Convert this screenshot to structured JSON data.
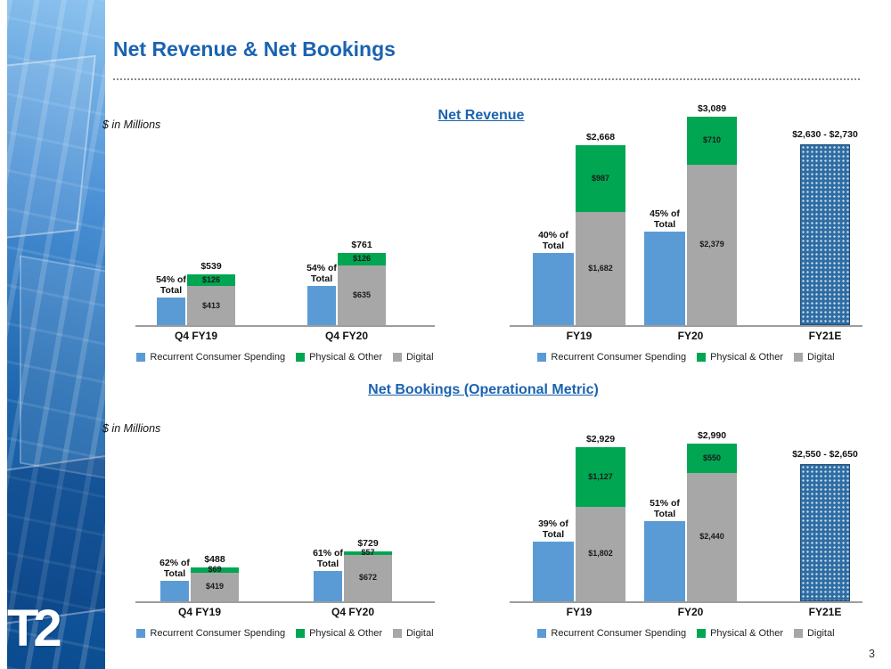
{
  "slide": {
    "title": "Net Revenue & Net Bookings",
    "page_number": "3",
    "logo_text": "T2",
    "units_label": "$ in Millions",
    "section_headings": {
      "revenue": "Net Revenue",
      "bookings": "Net Bookings (Operational Metric)"
    }
  },
  "colors": {
    "accent_blue": "#1b63b0",
    "bar_blue": "#5b9bd5",
    "bar_green": "#00a651",
    "bar_gray": "#a7a7a7",
    "estimate_bar_blue": "#2e6da4",
    "label_text": "#1a1a1a"
  },
  "chart_data": [
    {
      "id": "net_revenue_quarterly",
      "type": "bar",
      "title": "Net Revenue",
      "units": "$ in Millions",
      "ylim": [
        0,
        800
      ],
      "grid": false,
      "legend_position": "bottom",
      "legend": [
        "Recurrent Consumer Spending",
        "Physical & Other",
        "Digital"
      ],
      "categories": [
        "Q4 FY19",
        "Q4 FY20"
      ],
      "groups": [
        {
          "category": "Q4 FY19",
          "recurrent_pct": 54,
          "pct_label": "54% of Total",
          "total": 539,
          "total_label": "$539",
          "segments": {
            "digital": 413,
            "physical_other": 126
          },
          "segment_labels": {
            "digital": "$413",
            "physical_other": "$126"
          }
        },
        {
          "category": "Q4 FY20",
          "recurrent_pct": 54,
          "pct_label": "54% of Total",
          "total": 761,
          "total_label": "$761",
          "segments": {
            "digital": 635,
            "physical_other": 126
          },
          "segment_labels": {
            "digital": "$635",
            "physical_other": "$126"
          }
        }
      ]
    },
    {
      "id": "net_revenue_annual",
      "type": "bar",
      "title": "Net Revenue",
      "units": "$ in Millions",
      "ylim": [
        0,
        3300
      ],
      "grid": false,
      "legend_position": "bottom",
      "legend": [
        "Recurrent Consumer Spending",
        "Physical & Other",
        "Digital"
      ],
      "categories": [
        "FY19",
        "FY20",
        "FY21E"
      ],
      "groups": [
        {
          "category": "FY19",
          "recurrent_pct": 40,
          "pct_label": "40% of Total",
          "total": 2668,
          "total_label": "$2,668",
          "segments": {
            "digital": 1682,
            "physical_other": 987
          },
          "segment_labels": {
            "digital": "$1,682",
            "physical_other": "$987"
          }
        },
        {
          "category": "FY20",
          "recurrent_pct": 45,
          "pct_label": "45% of Total",
          "total": 3089,
          "total_label": "$3,089",
          "segments": {
            "digital": 2379,
            "physical_other": 710
          },
          "segment_labels": {
            "digital": "$2,379",
            "physical_other": "$710"
          }
        },
        {
          "category": "FY21E",
          "estimate": true,
          "low": 2630,
          "high": 2730,
          "range_label": "$2,630 - $2,730"
        }
      ]
    },
    {
      "id": "net_bookings_quarterly",
      "type": "bar",
      "title": "Net Bookings (Operational Metric)",
      "units": "$ in Millions",
      "ylim": [
        0,
        800
      ],
      "grid": false,
      "legend_position": "bottom",
      "legend": [
        "Recurrent Consumer Spending",
        "Physical & Other",
        "Digital"
      ],
      "categories": [
        "Q4 FY19",
        "Q4 FY20"
      ],
      "groups": [
        {
          "category": "Q4 FY19",
          "recurrent_pct": 62,
          "pct_label": "62% of Total",
          "total": 488,
          "total_label": "$488",
          "segments": {
            "digital": 419,
            "physical_other": 69
          },
          "segment_labels": {
            "digital": "$419",
            "physical_other": "$69"
          }
        },
        {
          "category": "Q4 FY20",
          "recurrent_pct": 61,
          "pct_label": "61% of Total",
          "total": 729,
          "total_label": "$729",
          "segments": {
            "digital": 672,
            "physical_other": 57
          },
          "segment_labels": {
            "digital": "$672",
            "physical_other": "$57"
          }
        }
      ]
    },
    {
      "id": "net_bookings_annual",
      "type": "bar",
      "title": "Net Bookings (Operational Metric)",
      "units": "$ in Millions",
      "ylim": [
        0,
        3300
      ],
      "grid": false,
      "legend_position": "bottom",
      "legend": [
        "Recurrent Consumer Spending",
        "Physical & Other",
        "Digital"
      ],
      "categories": [
        "FY19",
        "FY20",
        "FY21E"
      ],
      "groups": [
        {
          "category": "FY19",
          "recurrent_pct": 39,
          "pct_label": "39% of Total",
          "total": 2929,
          "total_label": "$2,929",
          "segments": {
            "digital": 1802,
            "physical_other": 1127
          },
          "segment_labels": {
            "digital": "$1,802",
            "physical_other": "$1,127"
          }
        },
        {
          "category": "FY20",
          "recurrent_pct": 51,
          "pct_label": "51% of Total",
          "total": 2990,
          "total_label": "$2,990",
          "segments": {
            "digital": 2440,
            "physical_other": 550
          },
          "segment_labels": {
            "digital": "$2,440",
            "physical_other": "$550"
          }
        },
        {
          "category": "FY21E",
          "estimate": true,
          "low": 2550,
          "high": 2650,
          "range_label": "$2,550 - $2,650"
        }
      ]
    }
  ]
}
